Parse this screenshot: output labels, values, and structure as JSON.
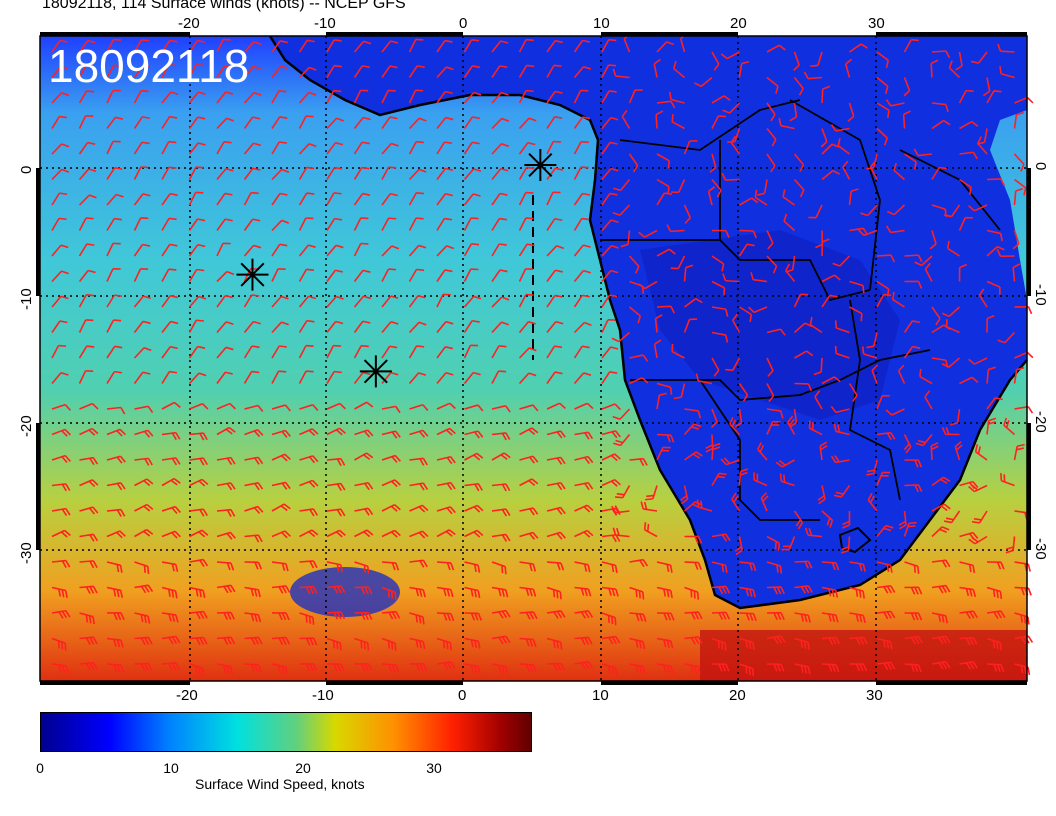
{
  "header": {
    "title": "18092118, 114 Surface winds (knots) -- NCEP GFS"
  },
  "map": {
    "stamp": "18092118",
    "lon_ticks_top": [
      "-20",
      "-10",
      "0",
      "10",
      "20",
      "30"
    ],
    "lon_ticks_bottom": [
      "-20",
      "-10",
      "0",
      "10",
      "20",
      "30"
    ],
    "lat_ticks_left": [
      "0",
      "-10",
      "-20",
      "-30"
    ],
    "lat_ticks_right": [
      "0",
      "-10",
      "-20",
      "-30"
    ],
    "lon_range": [
      -30,
      42
    ],
    "lat_range": [
      -40,
      10
    ],
    "barb_color": "#ff2020",
    "markers": [
      {
        "name": "storm-marker-1",
        "lon": -14.5,
        "lat": -8.5
      },
      {
        "name": "storm-marker-2",
        "lon": -5.5,
        "lat": -16
      },
      {
        "name": "storm-marker-3",
        "lon": 6.5,
        "lat": 0
      }
    ]
  },
  "colorbar": {
    "ticks": [
      "0",
      "10",
      "20",
      "30"
    ],
    "title": "Surface Wind Speed, knots"
  }
}
